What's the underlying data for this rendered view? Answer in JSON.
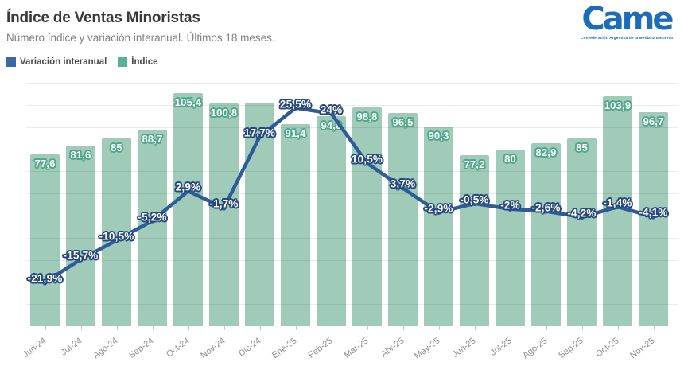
{
  "header": {
    "title": "Índice de Ventas Minoristas",
    "subtitle": "Número índice y variación interanual. Últimos 18 meses.",
    "logo": {
      "text": "Came",
      "tagline": "Confederación Argentina de la Mediana Empresa",
      "color": "#1b6db7"
    }
  },
  "legend": {
    "items": [
      {
        "label": "Variación interanual",
        "color": "#3a68a8"
      },
      {
        "label": "Índice",
        "color": "#54b296"
      }
    ]
  },
  "colors": {
    "bar_fill": "#9fcbb8",
    "bar_label_text": "#ffffff",
    "bar_label_outline": "#4fa88a",
    "line_stroke": "#2f5b9b",
    "line_label_text": "#ffffff",
    "line_label_outline": "#25477d",
    "gridline": "rgba(0,0,0,0.08)",
    "x_label": "#8f8f8f"
  },
  "chart_data": {
    "type": "bar+line",
    "title": "Índice de Ventas Minoristas",
    "subtitle": "Número índice y variación interanual. Últimos 18 meses.",
    "categories": [
      "Jun-24",
      "Jul-24",
      "Ago-24",
      "Sep-24",
      "Oct-24",
      "Nov-24",
      "Dic-24",
      "Ene-25",
      "Feb-25",
      "Mar-25",
      "Abr-25",
      "May-25",
      "Jun-25",
      "Jul-25",
      "Ago-25",
      "Sep-25",
      "Oct-25",
      "Nov-25"
    ],
    "series": [
      {
        "name": "Índice",
        "type": "bar",
        "values": [
          77.6,
          81.6,
          85,
          88.7,
          105.4,
          100.8,
          101,
          91.4,
          94.8,
          98.8,
          96.5,
          90.3,
          77.2,
          80,
          82.9,
          85,
          103.9,
          96.7
        ],
        "labels": [
          "77,6",
          "81,6",
          "85",
          "88,7",
          "105,4",
          "100,8",
          "",
          "91,4",
          "94,8",
          "98,8",
          "96,5",
          "90,3",
          "77,2",
          "80",
          "82,9",
          "85",
          "103,9",
          "96,7"
        ]
      },
      {
        "name": "Variación interanual",
        "type": "line",
        "values": [
          -21.9,
          -15.7,
          -10.5,
          -5.2,
          2.9,
          -1.7,
          17.7,
          25.5,
          24,
          10.5,
          3.7,
          -2.9,
          -0.5,
          -2,
          -2.6,
          -4.2,
          -1.4,
          -4.1
        ],
        "labels": [
          "-21,9%",
          "-15,7%",
          "-10,5%",
          "-5,2%",
          "2,9%",
          "-1,7%",
          "17,7%",
          "25,5%",
          "24%",
          "10,5%",
          "3,7%",
          "-2,9%",
          "-0,5%",
          "-2%",
          "-2,6%",
          "-4,2%",
          "-1,4%",
          "-4,1%"
        ]
      }
    ],
    "ylim_bars": [
      0,
      110
    ],
    "grid_step_bars": 10,
    "legend_position": "top-left",
    "y_axis_labels_visible": false,
    "notes": "Dic-24 bar shows no value label in the image (covered by line labels); its height is estimated ≈101 from gridlines."
  }
}
